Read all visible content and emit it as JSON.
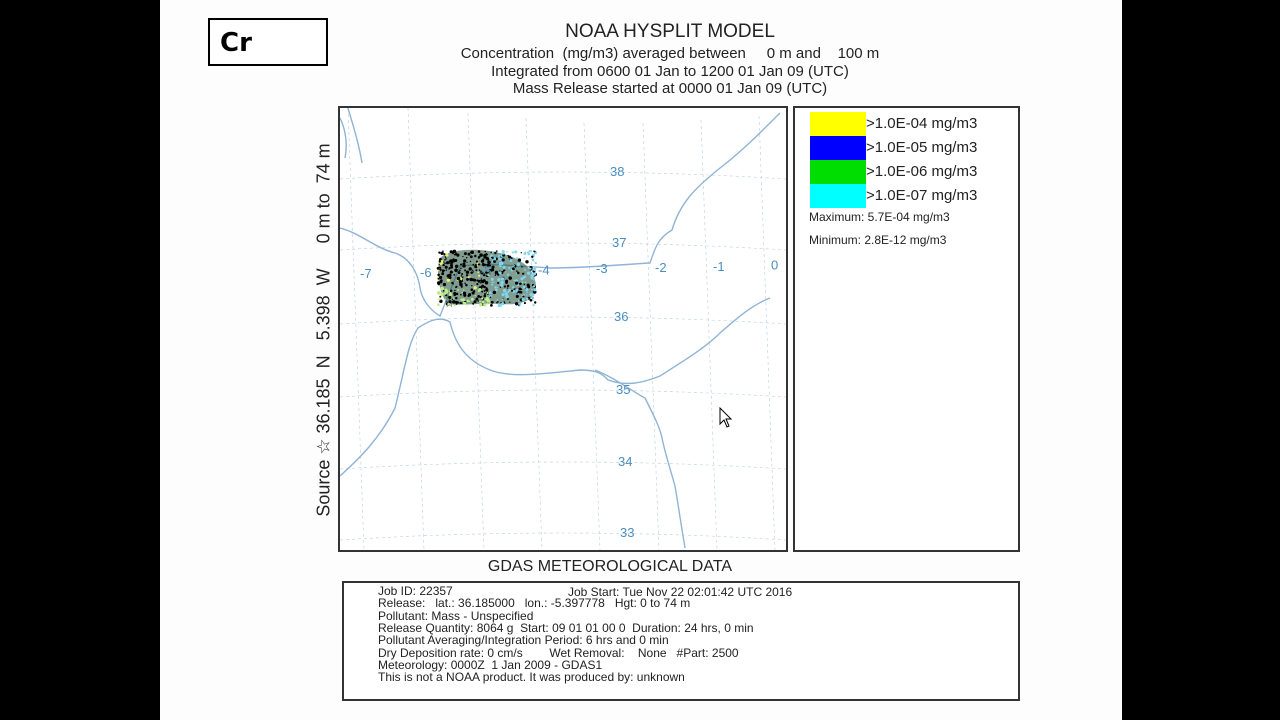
{
  "corner_label": "Cr",
  "header": {
    "title": "NOAA HYSPLIT MODEL",
    "line1": "Concentration  (mg/m3) averaged between     0 m and    100 m",
    "line2": "Integrated from 0600 01 Jan to 1200 01 Jan 09 (UTC)",
    "line3": "Mass Release started at 0000 01 Jan 09 (UTC)"
  },
  "side_label": "Source ☆ 36.185  N   5.398  W     0 m to  74 m",
  "map": {
    "lon_labels": [
      "-7",
      "-6",
      "-5",
      "-4",
      "-3",
      "-2",
      "-1",
      "0"
    ],
    "lat_labels": [
      "38",
      "37",
      "36",
      "35",
      "34",
      "33"
    ],
    "label_color": "#4a8fbf",
    "line_color": "#8fb4d6",
    "plume_colors": [
      "#000000",
      "#1a4d33",
      "#7fd6f0",
      "#c0ec8a",
      "#e8f06a"
    ]
  },
  "legend": {
    "items": [
      {
        "color": "#ffff00",
        "label": ">1.0E-04 mg/m3"
      },
      {
        "color": "#0000ff",
        "label": ">1.0E-05 mg/m3"
      },
      {
        "color": "#00dd00",
        "label": ">1.0E-06 mg/m3"
      },
      {
        "color": "#00ffff",
        "label": ">1.0E-07 mg/m3"
      }
    ],
    "maximum": "Maximum: 5.7E-04 mg/m3",
    "minimum": "Minimum: 2.8E-12 mg/m3"
  },
  "footer_title": "GDAS METEOROLOGICAL DATA",
  "info": {
    "job_start": "Job Start: Tue Nov 22 02:01:42 UTC 2016",
    "lines": [
      "Job ID: 22357",
      "Release:   lat.: 36.185000   lon.: -5.397778   Hgt: 0 to 74 m",
      "Pollutant: Mass - Unspecified",
      "Release Quantity: 8064 g  Start: 09 01 01 00 0  Duration: 24 hrs, 0 min",
      "Pollutant Averaging/Integration Period: 6 hrs and 0 min",
      "Dry Deposition rate: 0 cm/s        Wet Removal:    None   #Part: 2500",
      "Meteorology: 0000Z  1 Jan 2009 - GDAS1",
      "This is not a NOAA product. It was produced by: unknown"
    ]
  }
}
